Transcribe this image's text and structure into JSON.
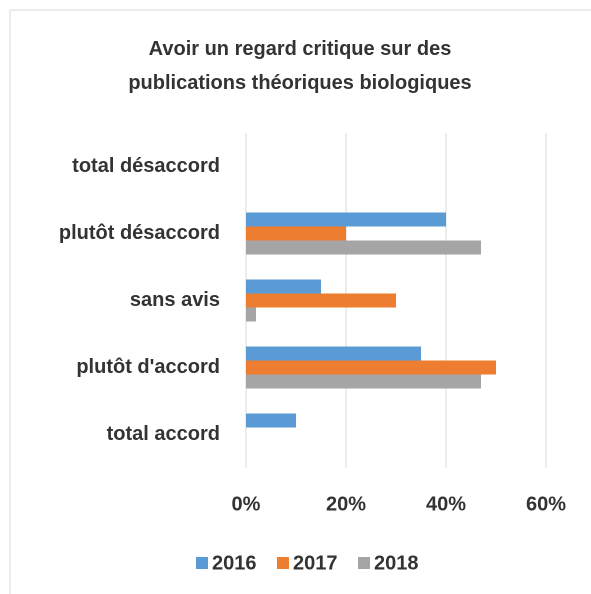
{
  "chart_data": {
    "type": "barh",
    "title": "Avoir un regard critique sur des publications théoriques biologiques",
    "categories": [
      "total désaccord",
      "plutôt désaccord",
      "sans avis",
      "plutôt d'accord",
      "total accord"
    ],
    "series": [
      {
        "name": "2016",
        "color": "#5b9bd5",
        "values": [
          0,
          40,
          15,
          35,
          10
        ]
      },
      {
        "name": "2017",
        "color": "#ed7d31",
        "values": [
          0,
          20,
          30,
          50,
          0
        ]
      },
      {
        "name": "2018",
        "color": "#a5a5a5",
        "values": [
          0,
          47,
          2,
          47,
          0
        ]
      }
    ],
    "xlim": [
      0,
      60
    ],
    "xticks": [
      {
        "value": 0,
        "label": "0%"
      },
      {
        "value": 20,
        "label": "20%"
      },
      {
        "value": 40,
        "label": "40%"
      },
      {
        "value": 60,
        "label": "60%"
      }
    ],
    "grid": true,
    "legend": "bottom"
  }
}
